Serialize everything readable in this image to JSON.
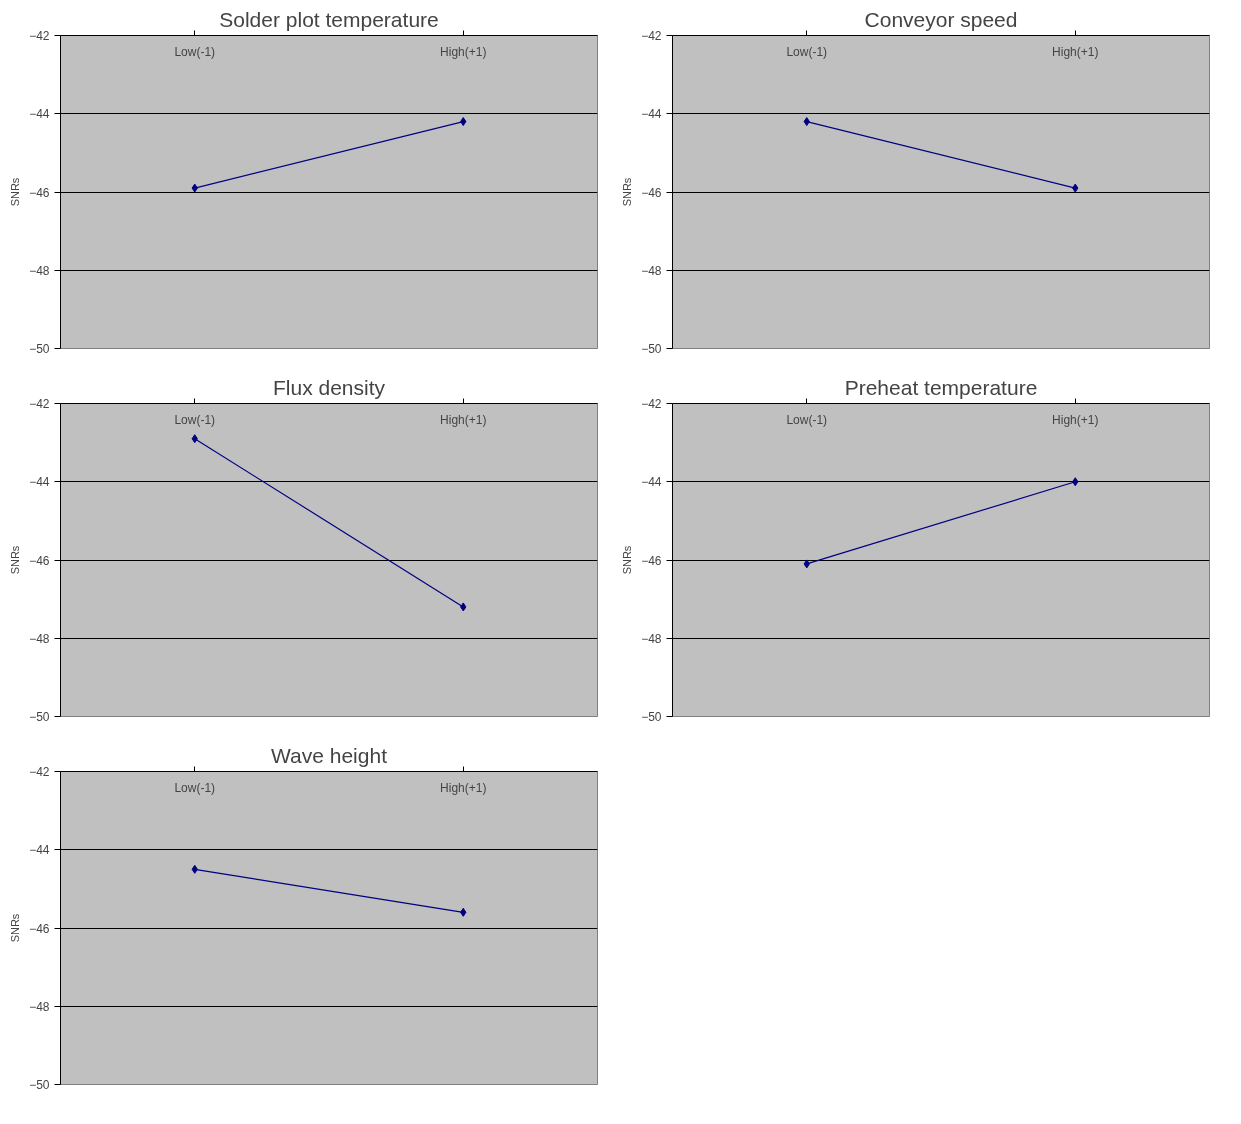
{
  "chart_data": [
    {
      "type": "line",
      "title": "Solder plot temperature",
      "ylabel": "SNRs",
      "categories": [
        "Low(-1)",
        "High(+1)"
      ],
      "values": [
        -45.9,
        -44.2
      ],
      "color": "#000080",
      "ylim": [
        -50,
        -42
      ],
      "yticks": [
        -50,
        -48,
        -46,
        -44,
        -42
      ],
      "grid": "y",
      "marker": "diamond"
    },
    {
      "type": "line",
      "title": "Conveyor speed",
      "ylabel": "SNRs",
      "categories": [
        "Low(-1)",
        "High(+1)"
      ],
      "values": [
        -44.2,
        -45.9
      ],
      "color": "#000080",
      "ylim": [
        -50,
        -42
      ],
      "yticks": [
        -50,
        -48,
        -46,
        -44,
        -42
      ],
      "grid": "y",
      "marker": "diamond"
    },
    {
      "type": "line",
      "title": "Flux density",
      "ylabel": "SNRs",
      "categories": [
        "Low(-1)",
        "High(+1)"
      ],
      "values": [
        -42.9,
        -47.2
      ],
      "color": "#000080",
      "ylim": [
        -50,
        -42
      ],
      "yticks": [
        -50,
        -48,
        -46,
        -44,
        -42
      ],
      "grid": "y",
      "marker": "diamond"
    },
    {
      "type": "line",
      "title": "Preheat temperature",
      "ylabel": "SNRs",
      "categories": [
        "Low(-1)",
        "High(+1)"
      ],
      "values": [
        -46.1,
        -44.0
      ],
      "color": "#000080",
      "ylim": [
        -50,
        -42
      ],
      "yticks": [
        -50,
        -48,
        -46,
        -44,
        -42
      ],
      "grid": "y",
      "marker": "diamond"
    },
    {
      "type": "line",
      "title": "Wave height",
      "ylabel": "SNRs",
      "categories": [
        "Low(-1)",
        "High(+1)"
      ],
      "values": [
        -44.5,
        -45.6
      ],
      "color": "#000080",
      "ylim": [
        -50,
        -42
      ],
      "yticks": [
        -50,
        -48,
        -46,
        -44,
        -42
      ],
      "grid": "y",
      "marker": "diamond"
    }
  ]
}
